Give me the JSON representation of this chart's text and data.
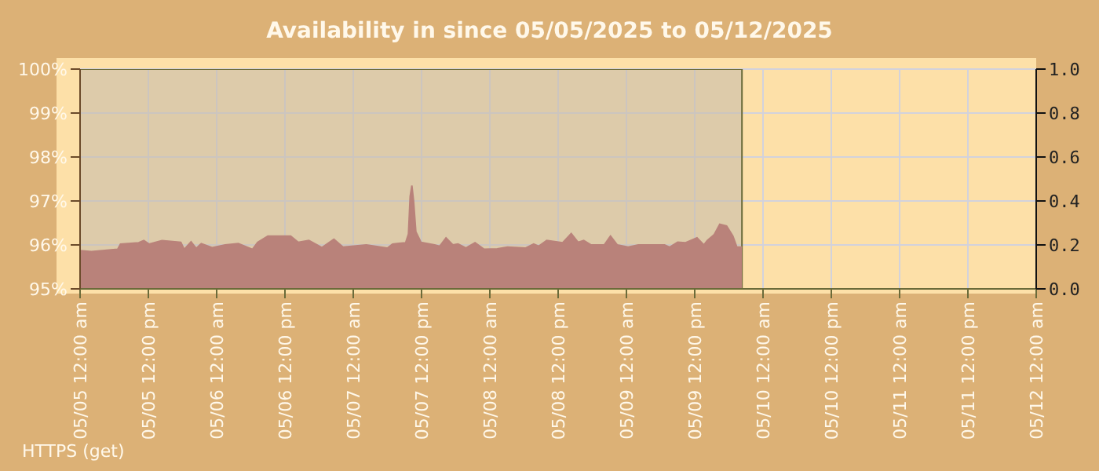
{
  "chart_data": {
    "type": "area",
    "title": "Availability in since 05/05/2025 to 05/12/2025",
    "annotations": [
      "HTTPS (get)"
    ],
    "x": [
      "2025-05-05T00:00",
      "2025-05-05T02:00",
      "2025-05-05T06:36",
      "2025-05-05T07:06",
      "2025-05-05T10:18",
      "2025-05-05T11:12",
      "2025-05-05T12:06",
      "2025-05-05T14:24",
      "2025-05-05T17:42",
      "2025-05-05T18:18",
      "2025-05-05T19:30",
      "2025-05-05T20:24",
      "2025-05-05T21:18",
      "2025-05-05T23:12",
      "2025-05-06T01:30",
      "2025-05-06T03:48",
      "2025-05-06T06:18",
      "2025-05-06T07:12",
      "2025-05-06T09:00",
      "2025-05-06T13:00",
      "2025-05-06T14:18",
      "2025-05-06T16:12",
      "2025-05-06T18:30",
      "2025-05-06T20:36",
      "2025-05-06T22:12",
      "2025-05-07T02:18",
      "2025-05-07T06:00",
      "2025-05-07T06:54",
      "2025-05-07T09:12",
      "2025-05-07T09:42",
      "2025-05-07T10:00",
      "2025-05-07T10:18",
      "2025-05-07T10:36",
      "2025-05-07T11:00",
      "2025-05-07T11:54",
      "2025-05-07T14:18",
      "2025-05-07T15:12",
      "2025-05-07T16:18",
      "2025-05-07T17:30",
      "2025-05-07T18:24",
      "2025-05-07T19:48",
      "2025-05-07T21:24",
      "2025-05-07T23:00",
      "2025-05-08T01:18",
      "2025-05-08T03:06",
      "2025-05-08T06:18",
      "2025-05-08T07:42",
      "2025-05-08T08:36",
      "2025-05-08T10:00",
      "2025-05-08T12:48",
      "2025-05-08T14:18",
      "2025-05-08T15:30",
      "2025-05-08T16:30",
      "2025-05-08T17:48",
      "2025-05-08T20:06",
      "2025-05-08T21:12",
      "2025-05-08T22:24",
      "2025-05-09T00:18",
      "2025-05-09T02:06",
      "2025-05-09T06:42",
      "2025-05-09T07:36",
      "2025-05-09T09:00",
      "2025-05-09T10:24",
      "2025-05-09T12:24",
      "2025-05-09T13:36",
      "2025-05-09T14:12",
      "2025-05-09T15:24",
      "2025-05-09T16:24",
      "2025-05-09T17:36",
      "2025-05-09T18:42",
      "2025-05-09T19:24",
      "2025-05-09T20:18"
    ],
    "series": [
      {
        "color": "#b9827a",
        "values": [
          95.87,
          95.85,
          95.9,
          96.02,
          96.05,
          96.1,
          96.02,
          96.1,
          96.06,
          95.9,
          96.07,
          95.92,
          96.03,
          95.94,
          96,
          96.03,
          95.9,
          96.06,
          96.2,
          96.2,
          96.06,
          96.1,
          95.94,
          96.13,
          95.95,
          96,
          95.93,
          96.02,
          96.05,
          96.25,
          97.1,
          97.35,
          97,
          96.3,
          96.06,
          96,
          95.97,
          96.16,
          96,
          96.02,
          95.93,
          96.05,
          95.9,
          95.91,
          95.95,
          95.93,
          96.02,
          95.97,
          96.1,
          96.05,
          96.26,
          96.06,
          96.1,
          96,
          96,
          96.2,
          96,
          95.95,
          96,
          96,
          95.95,
          96.06,
          96.05,
          96.16,
          96,
          96.1,
          96.23,
          96.47,
          96.43,
          96.2,
          95.95,
          95.95
        ]
      }
    ],
    "xlim": [
      "2025-05-05T00:00",
      "2025-05-12T00:00"
    ],
    "xticks": [
      {
        "value": "2025-05-05T00:00",
        "label": "05/05 12:00 am"
      },
      {
        "value": "2025-05-05T12:00",
        "label": "05/05 12:00 pm"
      },
      {
        "value": "2025-05-06T00:00",
        "label": "05/06 12:00 am"
      },
      {
        "value": "2025-05-06T12:00",
        "label": "05/06 12:00 pm"
      },
      {
        "value": "2025-05-07T00:00",
        "label": "05/07 12:00 am"
      },
      {
        "value": "2025-05-07T12:00",
        "label": "05/07 12:00 pm"
      },
      {
        "value": "2025-05-08T00:00",
        "label": "05/08 12:00 am"
      },
      {
        "value": "2025-05-08T12:00",
        "label": "05/08 12:00 pm"
      },
      {
        "value": "2025-05-09T00:00",
        "label": "05/09 12:00 am"
      },
      {
        "value": "2025-05-09T12:00",
        "label": "05/09 12:00 pm"
      },
      {
        "value": "2025-05-10T00:00",
        "label": "05/10 12:00 am"
      },
      {
        "value": "2025-05-10T12:00",
        "label": "05/10 12:00 pm"
      },
      {
        "value": "2025-05-11T00:00",
        "label": "05/11 12:00 am"
      },
      {
        "value": "2025-05-11T12:00",
        "label": "05/11 12:00 pm"
      },
      {
        "value": "2025-05-12T00:00",
        "label": "05/12 12:00 am"
      }
    ],
    "ylim": [
      95,
      100
    ],
    "yticks": [
      {
        "value": 95,
        "label": "95%"
      },
      {
        "value": 96,
        "label": "96%"
      },
      {
        "value": 97,
        "label": "97%"
      },
      {
        "value": 98,
        "label": "98%"
      },
      {
        "value": 99,
        "label": "99%"
      },
      {
        "value": 100,
        "label": "100%"
      }
    ],
    "y2lim": [
      0,
      1
    ],
    "y2ticks": [
      {
        "value": 0,
        "label": "0.0"
      },
      {
        "value": 0.2,
        "label": "0.2"
      },
      {
        "value": 0.4,
        "label": "0.4"
      },
      {
        "value": 0.6,
        "label": "0.6"
      },
      {
        "value": 0.8,
        "label": "0.8"
      },
      {
        "value": 1,
        "label": "1.0"
      }
    ],
    "bands": [
      {
        "axis": "x",
        "from": "2025-05-05T00:00",
        "to": "2025-05-09T20:18",
        "color": "#c8bcab"
      }
    ],
    "grid": true
  }
}
